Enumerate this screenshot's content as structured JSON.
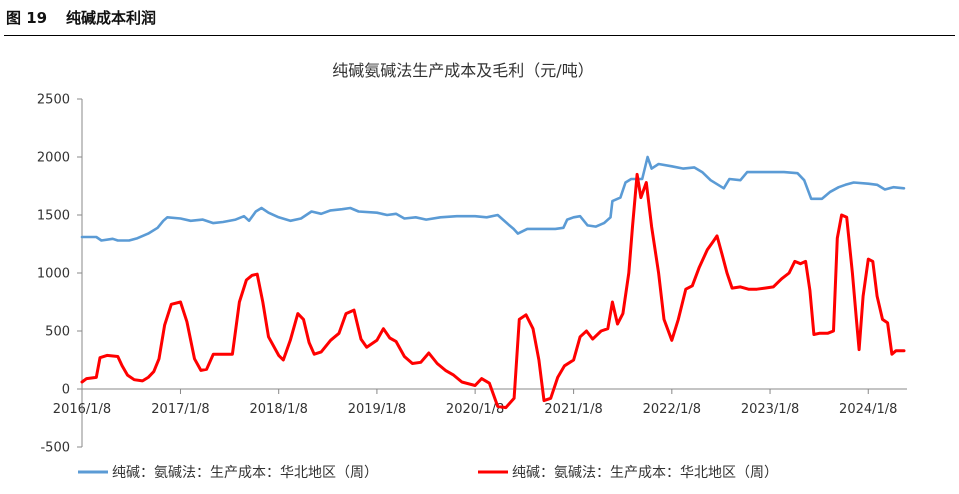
{
  "figure": {
    "label": "图 19",
    "title": "纯碱成本利润"
  },
  "colors": {
    "cost": "#5b9bd5",
    "profit": "#ff0000",
    "axis": "#888888"
  },
  "chart_data": {
    "type": "line",
    "title": "纯碱氨碱法生产成本及毛利（元/吨）",
    "xlabel": "",
    "ylabel": "",
    "ylim": [
      -500,
      2500
    ],
    "yticks": [
      -500,
      0,
      500,
      1000,
      1500,
      2000,
      2500
    ],
    "xlim": [
      "2016-01-08",
      "2024-05-31"
    ],
    "xticks": [
      "2016/1/8",
      "2017/1/8",
      "2018/1/8",
      "2019/1/8",
      "2020/1/8",
      "2021/1/8",
      "2022/1/8",
      "2023/1/8",
      "2024/1/8"
    ],
    "grid": false,
    "legend_position": "bottom",
    "series": [
      {
        "name": "纯碱：氨碱法：生产成本：华北地区（周）",
        "color": "#5b9bd5",
        "points": [
          [
            "2016-01-08",
            1310
          ],
          [
            "2016-03-01",
            1310
          ],
          [
            "2016-03-20",
            1280
          ],
          [
            "2016-05-01",
            1295
          ],
          [
            "2016-05-20",
            1280
          ],
          [
            "2016-07-01",
            1280
          ],
          [
            "2016-08-01",
            1300
          ],
          [
            "2016-09-10",
            1340
          ],
          [
            "2016-10-15",
            1390
          ],
          [
            "2016-11-05",
            1450
          ],
          [
            "2016-11-20",
            1480
          ],
          [
            "2017-01-08",
            1470
          ],
          [
            "2017-02-15",
            1450
          ],
          [
            "2017-04-01",
            1460
          ],
          [
            "2017-05-10",
            1430
          ],
          [
            "2017-06-15",
            1440
          ],
          [
            "2017-08-01",
            1460
          ],
          [
            "2017-09-01",
            1490
          ],
          [
            "2017-09-20",
            1450
          ],
          [
            "2017-10-15",
            1530
          ],
          [
            "2017-11-05",
            1560
          ],
          [
            "2017-12-01",
            1520
          ],
          [
            "2018-01-08",
            1480
          ],
          [
            "2018-02-20",
            1450
          ],
          [
            "2018-04-01",
            1470
          ],
          [
            "2018-05-10",
            1530
          ],
          [
            "2018-06-15",
            1510
          ],
          [
            "2018-07-20",
            1540
          ],
          [
            "2018-09-01",
            1550
          ],
          [
            "2018-10-01",
            1560
          ],
          [
            "2018-11-01",
            1530
          ],
          [
            "2019-01-08",
            1520
          ],
          [
            "2019-02-15",
            1500
          ],
          [
            "2019-03-20",
            1510
          ],
          [
            "2019-04-20",
            1470
          ],
          [
            "2019-06-01",
            1480
          ],
          [
            "2019-07-10",
            1460
          ],
          [
            "2019-09-01",
            1480
          ],
          [
            "2019-11-01",
            1490
          ],
          [
            "2020-01-08",
            1490
          ],
          [
            "2020-02-20",
            1480
          ],
          [
            "2020-04-01",
            1500
          ],
          [
            "2020-05-10",
            1420
          ],
          [
            "2020-05-30",
            1380
          ],
          [
            "2020-06-15",
            1340
          ],
          [
            "2020-07-20",
            1380
          ],
          [
            "2020-09-01",
            1380
          ],
          [
            "2020-11-01",
            1380
          ],
          [
            "2020-12-01",
            1390
          ],
          [
            "2020-12-15",
            1460
          ],
          [
            "2021-01-08",
            1480
          ],
          [
            "2021-02-01",
            1490
          ],
          [
            "2021-03-01",
            1410
          ],
          [
            "2021-04-01",
            1400
          ],
          [
            "2021-05-01",
            1430
          ],
          [
            "2021-05-25",
            1480
          ],
          [
            "2021-06-01",
            1620
          ],
          [
            "2021-07-01",
            1650
          ],
          [
            "2021-07-20",
            1780
          ],
          [
            "2021-08-10",
            1810
          ],
          [
            "2021-09-20",
            1810
          ],
          [
            "2021-10-10",
            2000
          ],
          [
            "2021-10-25",
            1900
          ],
          [
            "2021-11-20",
            1940
          ],
          [
            "2022-01-08",
            1920
          ],
          [
            "2022-02-20",
            1900
          ],
          [
            "2022-04-01",
            1910
          ],
          [
            "2022-05-01",
            1870
          ],
          [
            "2022-06-01",
            1800
          ],
          [
            "2022-07-20",
            1730
          ],
          [
            "2022-08-10",
            1810
          ],
          [
            "2022-09-20",
            1800
          ],
          [
            "2022-10-15",
            1870
          ],
          [
            "2022-12-01",
            1870
          ],
          [
            "2023-01-08",
            1870
          ],
          [
            "2023-03-01",
            1870
          ],
          [
            "2023-04-20",
            1860
          ],
          [
            "2023-05-15",
            1800
          ],
          [
            "2023-06-10",
            1640
          ],
          [
            "2023-07-20",
            1640
          ],
          [
            "2023-08-20",
            1700
          ],
          [
            "2023-09-20",
            1740
          ],
          [
            "2023-10-15",
            1760
          ],
          [
            "2023-11-15",
            1780
          ],
          [
            "2024-01-08",
            1770
          ],
          [
            "2024-02-10",
            1760
          ],
          [
            "2024-03-10",
            1720
          ],
          [
            "2024-04-10",
            1740
          ],
          [
            "2024-05-20",
            1730
          ]
        ]
      },
      {
        "name": "纯碱：氨碱法：生产成本：华北地区（周）",
        "color": "#ff0000",
        "points": [
          [
            "2016-01-08",
            60
          ],
          [
            "2016-01-25",
            90
          ],
          [
            "2016-03-01",
            100
          ],
          [
            "2016-03-15",
            270
          ],
          [
            "2016-04-10",
            290
          ],
          [
            "2016-05-20",
            280
          ],
          [
            "2016-06-05",
            200
          ],
          [
            "2016-06-25",
            120
          ],
          [
            "2016-07-20",
            80
          ],
          [
            "2016-08-20",
            70
          ],
          [
            "2016-09-10",
            100
          ],
          [
            "2016-10-01",
            150
          ],
          [
            "2016-10-20",
            260
          ],
          [
            "2016-11-10",
            550
          ],
          [
            "2016-12-05",
            730
          ],
          [
            "2017-01-08",
            750
          ],
          [
            "2017-02-01",
            580
          ],
          [
            "2017-03-01",
            260
          ],
          [
            "2017-03-25",
            160
          ],
          [
            "2017-04-15",
            170
          ],
          [
            "2017-05-10",
            300
          ],
          [
            "2017-06-20",
            300
          ],
          [
            "2017-07-20",
            300
          ],
          [
            "2017-08-15",
            750
          ],
          [
            "2017-09-10",
            940
          ],
          [
            "2017-10-01",
            980
          ],
          [
            "2017-10-20",
            990
          ],
          [
            "2017-11-10",
            750
          ],
          [
            "2017-12-01",
            450
          ],
          [
            "2018-01-08",
            290
          ],
          [
            "2018-01-25",
            250
          ],
          [
            "2018-02-20",
            420
          ],
          [
            "2018-03-20",
            650
          ],
          [
            "2018-04-10",
            600
          ],
          [
            "2018-05-01",
            400
          ],
          [
            "2018-05-20",
            300
          ],
          [
            "2018-06-15",
            320
          ],
          [
            "2018-07-20",
            420
          ],
          [
            "2018-08-20",
            480
          ],
          [
            "2018-09-15",
            650
          ],
          [
            "2018-10-15",
            680
          ],
          [
            "2018-11-10",
            430
          ],
          [
            "2018-12-01",
            360
          ],
          [
            "2019-01-08",
            420
          ],
          [
            "2019-02-01",
            520
          ],
          [
            "2019-02-25",
            440
          ],
          [
            "2019-03-20",
            410
          ],
          [
            "2019-04-20",
            280
          ],
          [
            "2019-05-20",
            220
          ],
          [
            "2019-06-20",
            230
          ],
          [
            "2019-07-20",
            310
          ],
          [
            "2019-08-20",
            220
          ],
          [
            "2019-09-20",
            160
          ],
          [
            "2019-10-20",
            120
          ],
          [
            "2019-11-20",
            60
          ],
          [
            "2020-01-08",
            30
          ],
          [
            "2020-02-01",
            90
          ],
          [
            "2020-03-01",
            50
          ],
          [
            "2020-04-01",
            -150
          ],
          [
            "2020-05-01",
            -160
          ],
          [
            "2020-06-01",
            -80
          ],
          [
            "2020-06-20",
            600
          ],
          [
            "2020-07-15",
            640
          ],
          [
            "2020-08-10",
            520
          ],
          [
            "2020-09-01",
            250
          ],
          [
            "2020-09-20",
            -100
          ],
          [
            "2020-10-15",
            -80
          ],
          [
            "2020-11-10",
            100
          ],
          [
            "2020-12-05",
            200
          ],
          [
            "2021-01-08",
            250
          ],
          [
            "2021-02-01",
            450
          ],
          [
            "2021-02-25",
            500
          ],
          [
            "2021-03-20",
            430
          ],
          [
            "2021-04-20",
            500
          ],
          [
            "2021-05-15",
            520
          ],
          [
            "2021-06-01",
            750
          ],
          [
            "2021-06-20",
            560
          ],
          [
            "2021-07-10",
            650
          ],
          [
            "2021-08-01",
            1000
          ],
          [
            "2021-08-15",
            1400
          ],
          [
            "2021-09-01",
            1850
          ],
          [
            "2021-09-15",
            1650
          ],
          [
            "2021-10-05",
            1780
          ],
          [
            "2021-10-25",
            1400
          ],
          [
            "2021-11-20",
            1000
          ],
          [
            "2021-12-10",
            600
          ],
          [
            "2022-01-08",
            420
          ],
          [
            "2022-02-01",
            600
          ],
          [
            "2022-03-01",
            860
          ],
          [
            "2022-03-25",
            890
          ],
          [
            "2022-04-20",
            1050
          ],
          [
            "2022-05-20",
            1200
          ],
          [
            "2022-06-10",
            1270
          ],
          [
            "2022-06-25",
            1320
          ],
          [
            "2022-07-15",
            1150
          ],
          [
            "2022-08-01",
            1000
          ],
          [
            "2022-08-20",
            870
          ],
          [
            "2022-09-20",
            880
          ],
          [
            "2022-10-20",
            860
          ],
          [
            "2022-11-20",
            860
          ],
          [
            "2022-12-20",
            870
          ],
          [
            "2023-01-20",
            880
          ],
          [
            "2023-02-20",
            950
          ],
          [
            "2023-03-20",
            1000
          ],
          [
            "2023-04-10",
            1100
          ],
          [
            "2023-05-01",
            1080
          ],
          [
            "2023-05-20",
            1100
          ],
          [
            "2023-06-05",
            850
          ],
          [
            "2023-06-20",
            470
          ],
          [
            "2023-07-10",
            480
          ],
          [
            "2023-08-10",
            480
          ],
          [
            "2023-09-01",
            500
          ],
          [
            "2023-09-15",
            1300
          ],
          [
            "2023-10-01",
            1500
          ],
          [
            "2023-10-20",
            1480
          ],
          [
            "2023-11-10",
            1000
          ],
          [
            "2023-11-25",
            600
          ],
          [
            "2023-12-05",
            340
          ],
          [
            "2023-12-20",
            800
          ],
          [
            "2024-01-08",
            1120
          ],
          [
            "2024-01-25",
            1100
          ],
          [
            "2024-02-10",
            800
          ],
          [
            "2024-03-01",
            600
          ],
          [
            "2024-03-20",
            570
          ],
          [
            "2024-04-05",
            300
          ],
          [
            "2024-04-20",
            330
          ],
          [
            "2024-05-20",
            330
          ]
        ]
      }
    ]
  }
}
